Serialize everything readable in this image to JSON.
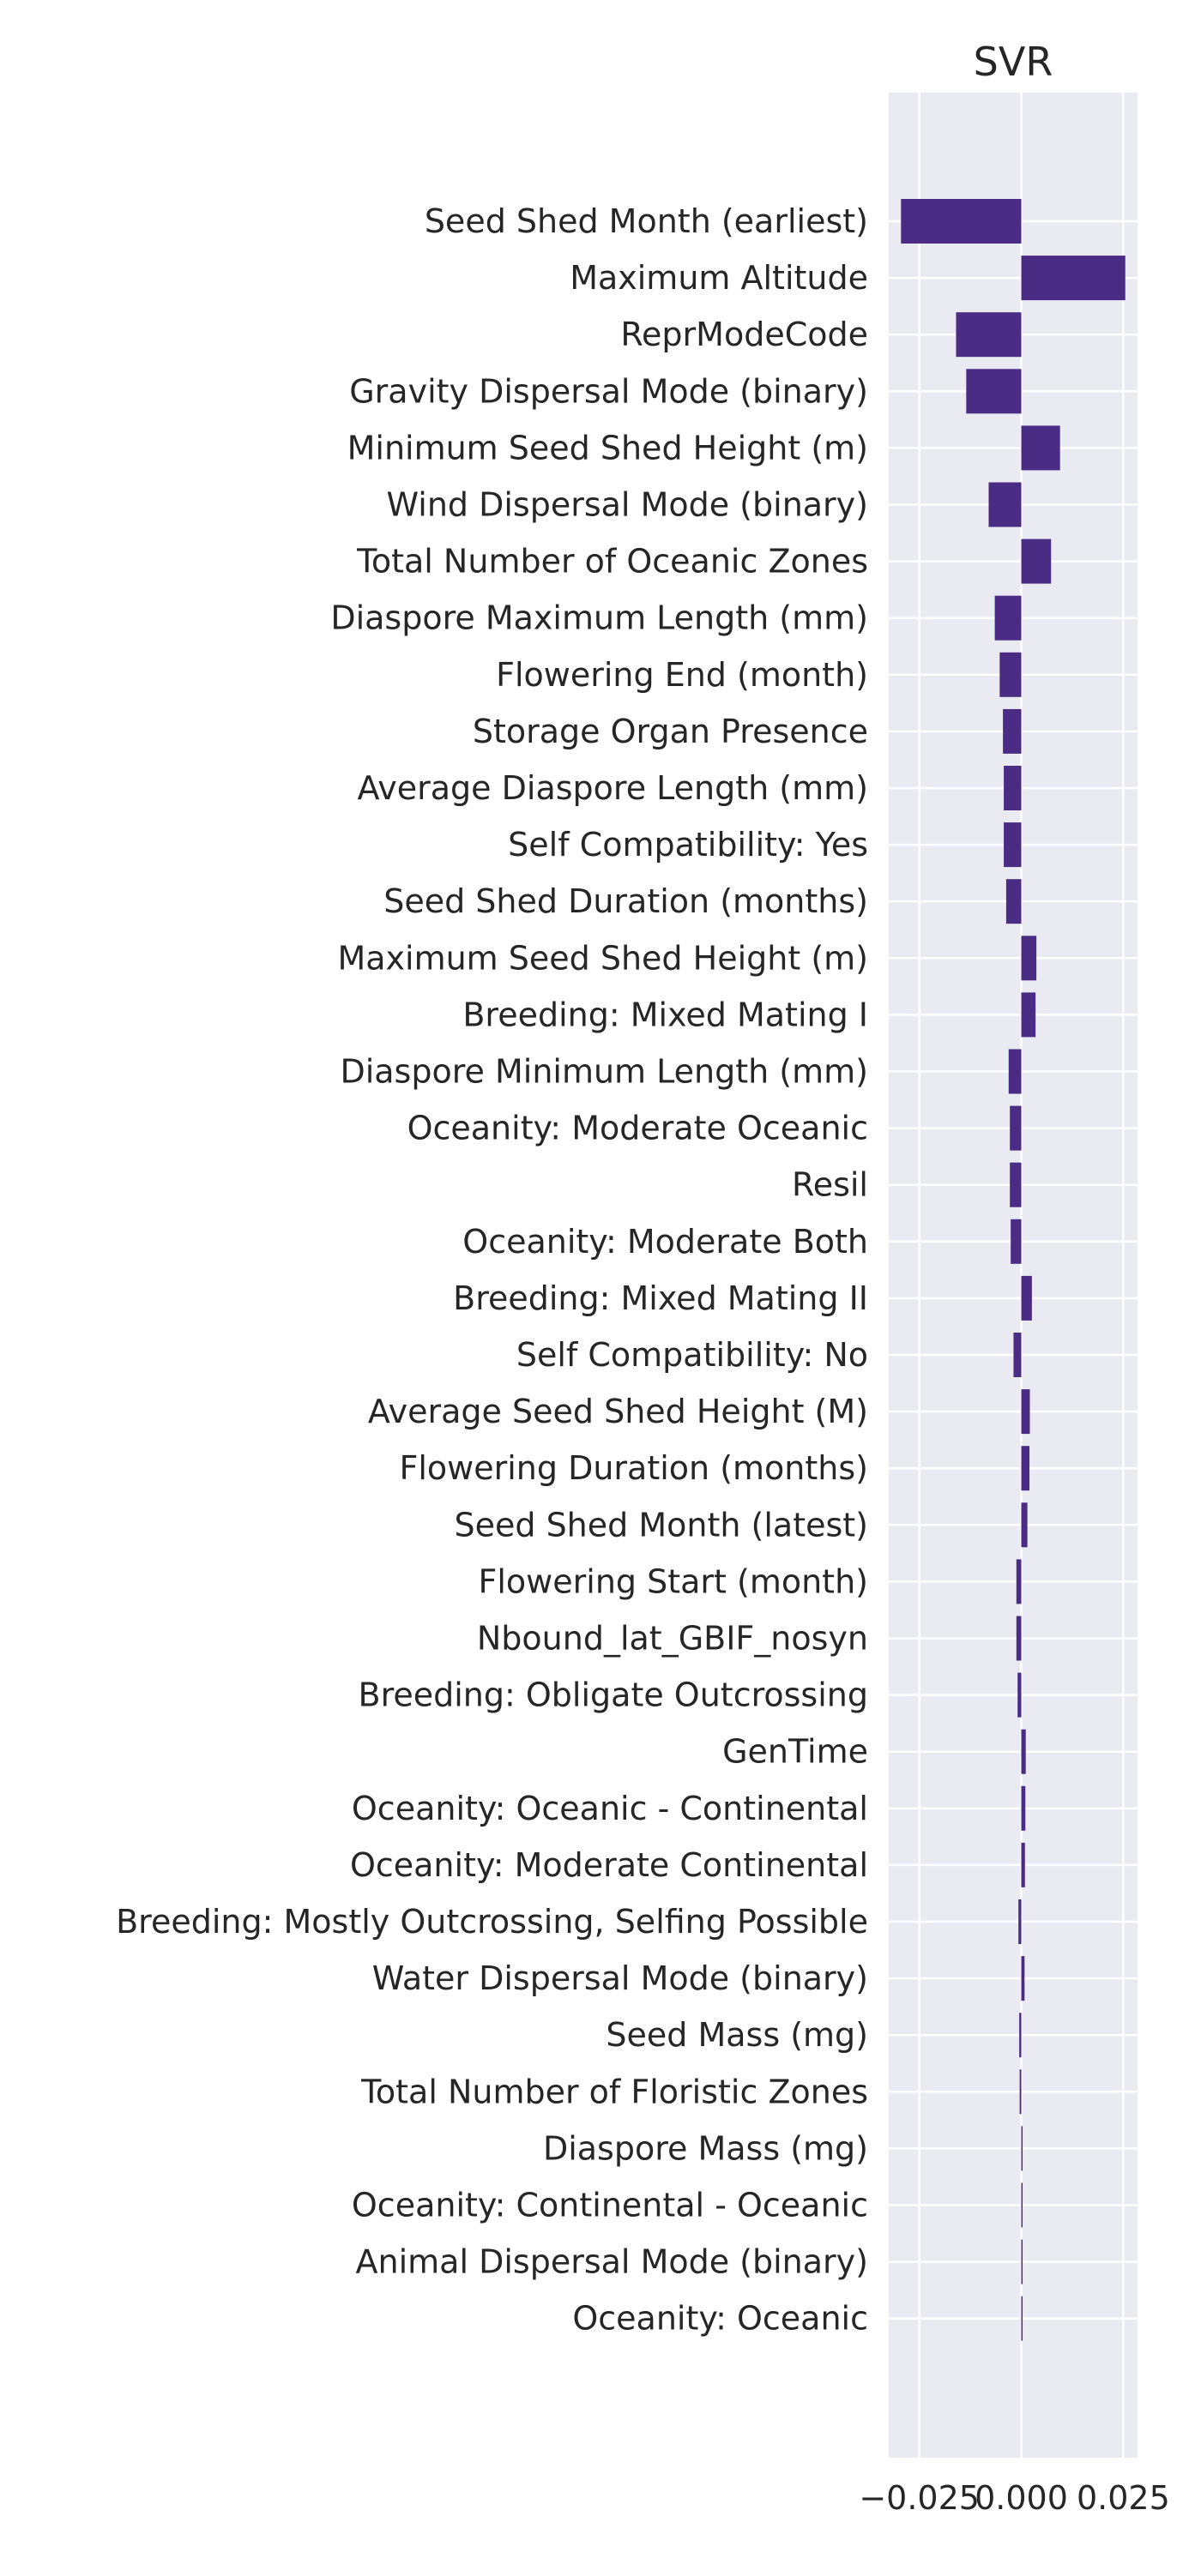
{
  "chart_data": {
    "type": "bar",
    "orientation": "horizontal",
    "title": "SVR",
    "xlabel": "",
    "ylabel": "",
    "xlim": [
      -0.0325,
      0.0285
    ],
    "xticks": [
      -0.025,
      0.0,
      0.025
    ],
    "xtick_labels": [
      "−0.025",
      "0.000",
      "0.025"
    ],
    "grid": true,
    "bar_color": "#4b2c85",
    "plot_background": "#eaeaf2",
    "categories": [
      "Seed Shed Month (earliest)",
      "Maximum Altitude",
      "ReprModeCode",
      "Gravity Dispersal Mode (binary)",
      "Minimum Seed Shed Height (m)",
      "Wind Dispersal Mode (binary)",
      "Total Number of Oceanic Zones",
      "Diaspore Maximum Length (mm)",
      "Flowering End (month)",
      "Storage Organ Presence",
      "Average Diaspore Length (mm)",
      "Self Compatibility: Yes",
      "Seed Shed Duration (months)",
      "Maximum Seed Shed Height (m)",
      "Breeding: Mixed Mating I",
      "Diaspore Minimum Length (mm)",
      "Oceanity: Moderate Oceanic",
      "Resil",
      "Oceanity: Moderate Both",
      "Breeding: Mixed Mating II",
      "Self Compatibility: No",
      "Average Seed Shed Height (M)",
      "Flowering Duration (months)",
      "Seed Shed Month (latest)",
      "Flowering Start (month)",
      "Nbound_lat_GBIF_nosyn",
      "Breeding: Obligate Outcrossing",
      "GenTime",
      "Oceanity: Oceanic - Continental",
      "Oceanity: Moderate Continental",
      "Breeding: Mostly Outcrossing, Selfing Possible",
      "Water Dispersal Mode (binary)",
      "Seed Mass (mg)",
      "Total Number of Floristic Zones",
      "Diaspore Mass (mg)",
      "Oceanity: Continental - Oceanic",
      "Animal Dispersal Mode (binary)",
      "Oceanity: Oceanic"
    ],
    "values": [
      -0.0295,
      0.0255,
      -0.016,
      -0.0135,
      0.0095,
      -0.008,
      0.0073,
      -0.0065,
      -0.0053,
      -0.0045,
      -0.0043,
      -0.0043,
      -0.0037,
      0.0037,
      0.0035,
      -0.0031,
      -0.0028,
      -0.0028,
      -0.0026,
      0.0026,
      -0.0019,
      0.0021,
      0.002,
      0.0015,
      -0.0012,
      -0.0012,
      -0.0009,
      0.0011,
      0.001,
      0.0009,
      -0.0007,
      0.0008,
      -0.0005,
      -0.0004,
      0.0003,
      0.0002,
      0.0002,
      0.0001
    ]
  }
}
